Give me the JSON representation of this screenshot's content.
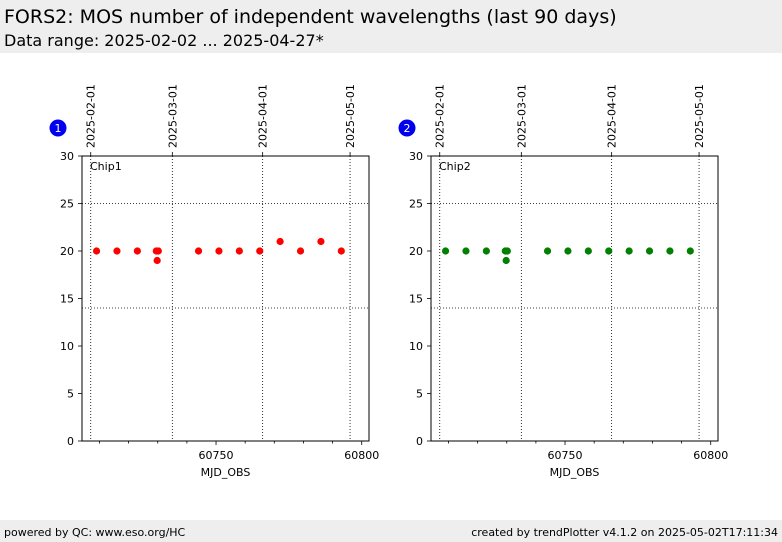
{
  "header": {
    "title": "FORS2: MOS number of independent wavelengths (last 90 days)",
    "subtitle": "Data range: 2025-02-02 ... 2025-04-27*"
  },
  "footer": {
    "left": "powered by QC: www.eso.org/HC",
    "right": "created by trendPlotter v4.1.2 on 2025-05-02T17:11:34"
  },
  "chart_data": [
    {
      "type": "scatter",
      "badge": "1",
      "panel_label": "Chip1",
      "color": "#ff0000",
      "xlabel": "MJD_OBS",
      "xlim": [
        60704,
        60802.5
      ],
      "ylim": [
        0,
        30
      ],
      "x_ticks": [
        60750,
        60800
      ],
      "y_ticks": [
        0,
        5,
        10,
        15,
        20,
        25,
        30
      ],
      "top_date_ticks": [
        {
          "label": "2025-02-01",
          "mjd": 60707
        },
        {
          "label": "2025-03-01",
          "mjd": 60735
        },
        {
          "label": "2025-04-01",
          "mjd": 60766
        },
        {
          "label": "2025-05-01",
          "mjd": 60796
        }
      ],
      "hlines": [
        14
      ],
      "points": [
        {
          "x": 60709,
          "y": 20
        },
        {
          "x": 60716,
          "y": 20
        },
        {
          "x": 60723,
          "y": 20
        },
        {
          "x": 60729.5,
          "y": 20
        },
        {
          "x": 60730.2,
          "y": 20
        },
        {
          "x": 60729.8,
          "y": 19
        },
        {
          "x": 60744,
          "y": 20
        },
        {
          "x": 60751,
          "y": 20
        },
        {
          "x": 60758,
          "y": 20
        },
        {
          "x": 60765,
          "y": 20
        },
        {
          "x": 60772,
          "y": 21
        },
        {
          "x": 60779,
          "y": 20
        },
        {
          "x": 60786,
          "y": 21
        },
        {
          "x": 60793,
          "y": 20
        }
      ]
    },
    {
      "type": "scatter",
      "badge": "2",
      "panel_label": "Chip2",
      "color": "#008000",
      "xlabel": "MJD_OBS",
      "xlim": [
        60704,
        60802.5
      ],
      "ylim": [
        0,
        30
      ],
      "x_ticks": [
        60750,
        60800
      ],
      "y_ticks": [
        0,
        5,
        10,
        15,
        20,
        25,
        30
      ],
      "top_date_ticks": [
        {
          "label": "2025-02-01",
          "mjd": 60707
        },
        {
          "label": "2025-03-01",
          "mjd": 60735
        },
        {
          "label": "2025-04-01",
          "mjd": 60766
        },
        {
          "label": "2025-05-01",
          "mjd": 60796
        }
      ],
      "hlines": [
        14
      ],
      "points": [
        {
          "x": 60709,
          "y": 20
        },
        {
          "x": 60716,
          "y": 20
        },
        {
          "x": 60723,
          "y": 20
        },
        {
          "x": 60729.5,
          "y": 20
        },
        {
          "x": 60730.2,
          "y": 20
        },
        {
          "x": 60729.8,
          "y": 19
        },
        {
          "x": 60744,
          "y": 20
        },
        {
          "x": 60751,
          "y": 20
        },
        {
          "x": 60758,
          "y": 20
        },
        {
          "x": 60765,
          "y": 20
        },
        {
          "x": 60772,
          "y": 20
        },
        {
          "x": 60779,
          "y": 20
        },
        {
          "x": 60786,
          "y": 20
        },
        {
          "x": 60793,
          "y": 20
        }
      ]
    }
  ]
}
